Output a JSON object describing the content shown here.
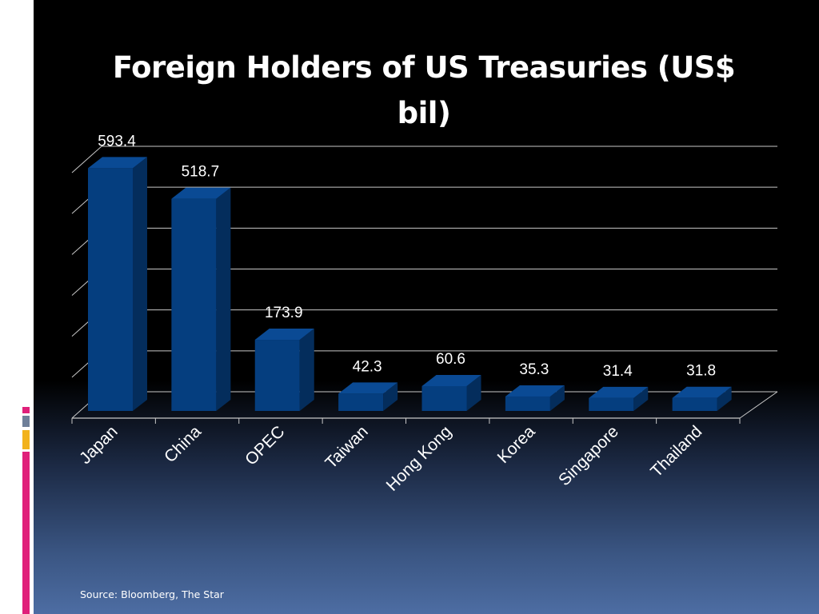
{
  "slide": {
    "source": "Source: Bloomberg, The Star"
  },
  "colors": {
    "bar_front": "#053e7f",
    "bar_side": "#042d5c",
    "bar_top": "#0a4a94",
    "grid": "#c8c8c8",
    "accent_pink": "#e0207a",
    "accent_gray": "#6f7f99",
    "accent_gold": "#f2b21c"
  },
  "chart_data": {
    "type": "bar",
    "title": "Foreign Holders of US Treasuries (US$ bil)",
    "categories": [
      "Japan",
      "China",
      "OPEC",
      "Taiwan",
      "Hong Kong",
      "Korea",
      "Singapore",
      "Thailand"
    ],
    "values": [
      593.4,
      518.7,
      173.9,
      42.3,
      60.6,
      35.3,
      31.4,
      31.8
    ],
    "data_labels": [
      "593.4",
      "518.7",
      "173.9",
      "42.3",
      "60.6",
      "35.3",
      "31.4",
      "31.8"
    ],
    "ylim": [
      0,
      600
    ],
    "grid": true,
    "three_d": true,
    "xlabel": "",
    "ylabel": ""
  }
}
